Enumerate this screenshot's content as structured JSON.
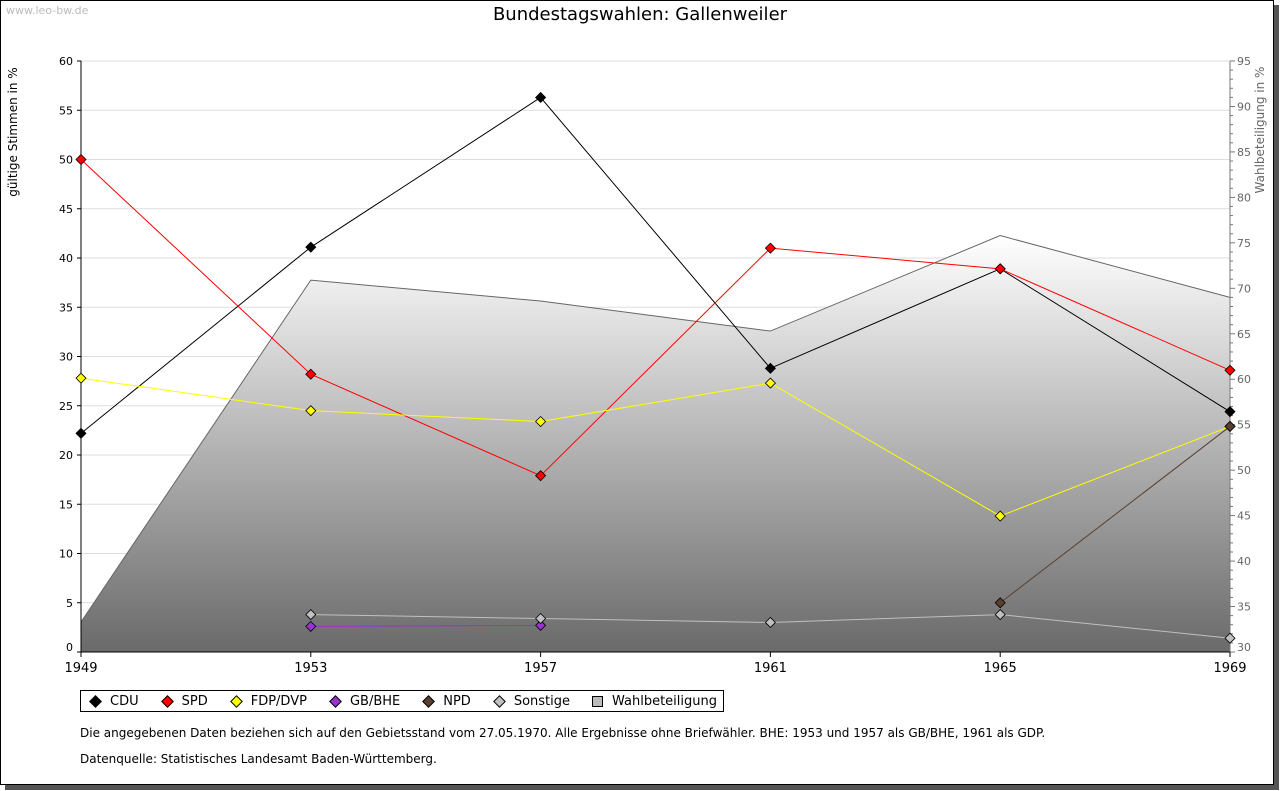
{
  "source_label": "www.leo-bw.de",
  "notes": [
    "Die angegebenen Daten beziehen sich auf den Gebietsstand vom 27.05.1970. Alle Ergebnisse ohne Briefwähler. BHE: 1953 und 1957 als GB/BHE, 1961 als GDP.",
    "Datenquelle: Statistisches Landesamt Baden-Württemberg."
  ],
  "chart_data": {
    "type": "line",
    "title": "Bundestagswahlen: Gallenweiler",
    "ylabel": "gültige Stimmen in %",
    "y2label": "Wahlbeteiligung in %",
    "x": [
      1949,
      1953,
      1957,
      1961,
      1965,
      1969
    ],
    "xticks": [
      "1949",
      "1953",
      "1957",
      "1961",
      "1965",
      "1969"
    ],
    "ylim": [
      0,
      60
    ],
    "yticks": [
      "0",
      "5",
      "10",
      "15",
      "20",
      "25",
      "30",
      "35",
      "40",
      "45",
      "50",
      "55",
      "60"
    ],
    "y2lim": [
      30,
      95
    ],
    "y2ticks": [
      "30",
      "35",
      "40",
      "45",
      "50",
      "55",
      "60",
      "65",
      "70",
      "75",
      "80",
      "85",
      "90",
      "95"
    ],
    "grid": true,
    "legend_placement": "bottom",
    "series": [
      {
        "name": "CDU",
        "color": "#000000",
        "values": [
          22.2,
          41.1,
          56.3,
          28.8,
          38.9,
          24.4
        ]
      },
      {
        "name": "SPD",
        "color": "#ff0000",
        "values": [
          50.0,
          28.2,
          17.9,
          41.0,
          38.9,
          28.6
        ]
      },
      {
        "name": "FDP/DVP",
        "color": "#ffff00",
        "values": [
          27.8,
          24.5,
          23.4,
          27.3,
          13.8,
          22.9
        ]
      },
      {
        "name": "GB/BHE",
        "color": "#9933cc",
        "values": [
          null,
          2.6,
          2.7,
          null,
          null,
          null
        ]
      },
      {
        "name": "NPD",
        "color": "#5a4030",
        "values": [
          null,
          null,
          null,
          null,
          5.0,
          22.9
        ]
      },
      {
        "name": "Sonstige",
        "color": "#c0c0c0",
        "values": [
          null,
          3.8,
          3.4,
          3.0,
          3.8,
          1.4
        ]
      }
    ],
    "area": {
      "name": "Wahlbeteiligung",
      "axis": "right",
      "values": [
        33.3,
        70.9,
        68.6,
        65.3,
        75.8,
        69.0
      ]
    }
  }
}
